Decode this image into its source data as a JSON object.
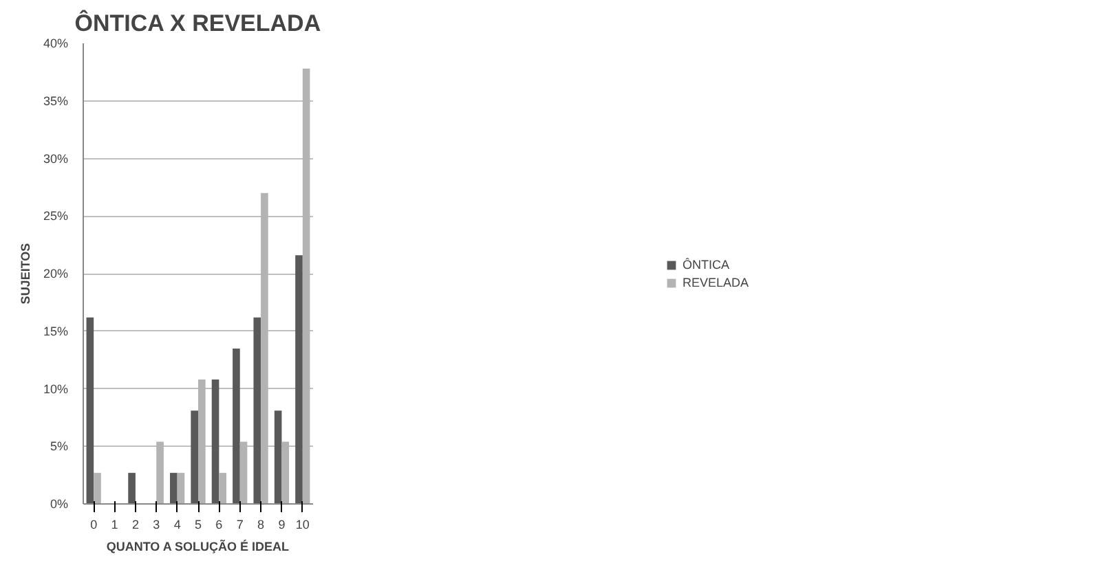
{
  "chart_data": {
    "type": "bar",
    "title": "ÔNTICA X REVELADA",
    "xlabel": "QUANTO A SOLUÇÃO É IDEAL",
    "ylabel": "SUJEITOS",
    "categories": [
      "0",
      "1",
      "2",
      "3",
      "4",
      "5",
      "6",
      "7",
      "8",
      "9",
      "10"
    ],
    "series": [
      {
        "name": "ÔNTICA",
        "color": "#595959",
        "values": [
          16.2,
          0,
          2.7,
          0,
          2.7,
          8.1,
          10.8,
          13.5,
          16.2,
          8.1,
          21.6
        ]
      },
      {
        "name": "REVELADA",
        "color": "#b3b3b3",
        "values": [
          2.7,
          0,
          0,
          5.4,
          2.7,
          10.8,
          2.7,
          5.4,
          27.0,
          5.4,
          37.8
        ]
      }
    ],
    "ylim": [
      0,
      40
    ],
    "yticks": [
      {
        "value": 0,
        "label": "0%"
      },
      {
        "value": 5,
        "label": "5%"
      },
      {
        "value": 10,
        "label": "10%"
      },
      {
        "value": 15,
        "label": "15%"
      },
      {
        "value": 20,
        "label": "20%"
      },
      {
        "value": 25,
        "label": "25%"
      },
      {
        "value": 30,
        "label": "30%"
      },
      {
        "value": 35,
        "label": "35%"
      },
      {
        "value": 40,
        "label": "40%"
      }
    ],
    "grid": "y",
    "legend": "right"
  }
}
